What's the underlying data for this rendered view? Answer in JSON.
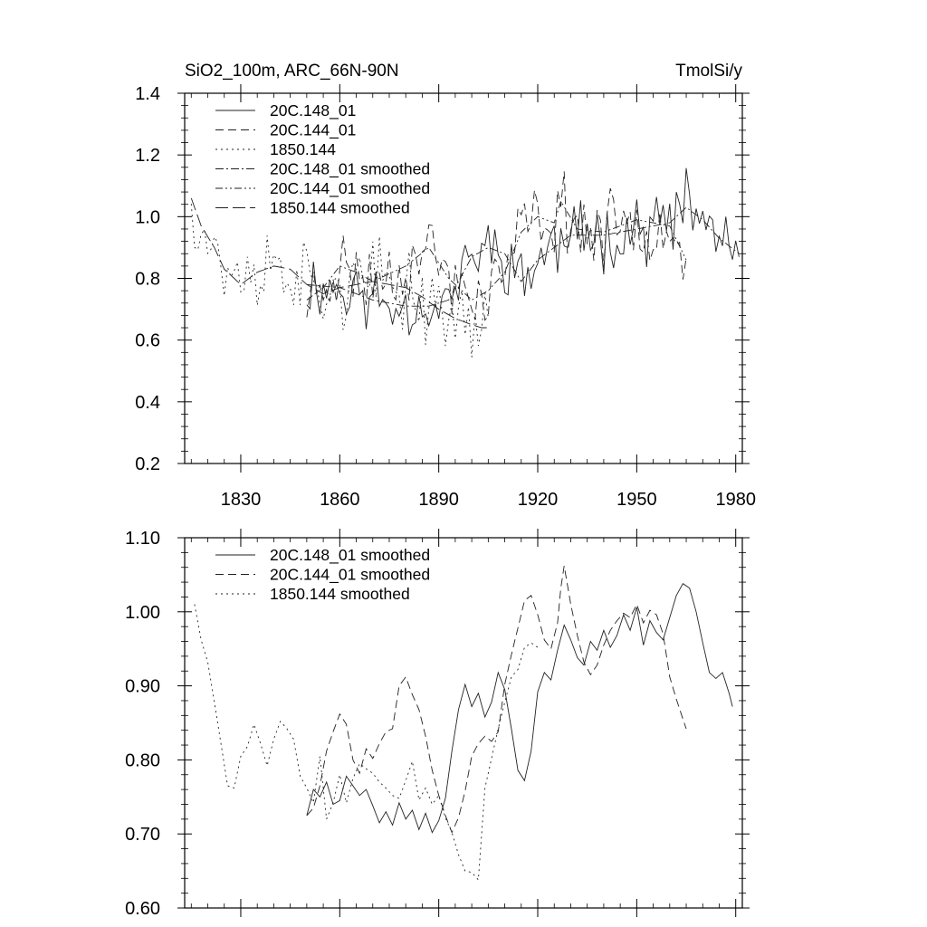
{
  "header": {
    "title_left": "SiO2_100m, ARC_66N-90N",
    "title_right": "TmolSi/y"
  },
  "chart_data": [
    {
      "type": "line",
      "title": "SiO2_100m, ARC_66N-90N",
      "units": "TmolSi/y",
      "xlim": [
        1813,
        1982
      ],
      "ylim": [
        0.2,
        1.4
      ],
      "xticks": [
        1830,
        1860,
        1890,
        1920,
        1950,
        1980
      ],
      "yticks": [
        0.2,
        0.4,
        0.6,
        0.8,
        1.0,
        1.2,
        1.4
      ],
      "ytick_labels": [
        "0.2",
        "0.4",
        "0.6",
        "0.8",
        "1.0",
        "1.2",
        "1.4"
      ],
      "legend_position": "top-left",
      "series": [
        {
          "name": "20C.148_01",
          "style": "solid",
          "start": 1850,
          "amp": 0.085,
          "seed": 11,
          "x": [
            1850,
            1860,
            1870,
            1880,
            1887,
            1893,
            1900,
            1905,
            1910,
            1915,
            1920,
            1930,
            1940,
            1950,
            1960,
            1965,
            1970,
            1975,
            1981
          ],
          "y": [
            0.78,
            0.77,
            0.73,
            0.71,
            0.71,
            0.73,
            0.87,
            0.9,
            0.88,
            0.79,
            0.86,
            0.94,
            0.94,
            0.96,
            0.98,
            1.03,
            0.99,
            0.93,
            0.88
          ]
        },
        {
          "name": "20C.144_01",
          "style": "dash",
          "start": 1850,
          "amp": 0.09,
          "seed": 23,
          "x": [
            1850,
            1855,
            1860,
            1865,
            1870,
            1880,
            1887,
            1893,
            1900,
            1905,
            1910,
            1915,
            1920,
            1925,
            1927,
            1932,
            1940,
            1950,
            1960,
            1965
          ],
          "y": [
            0.73,
            0.77,
            0.84,
            0.82,
            0.79,
            0.84,
            0.9,
            0.8,
            0.73,
            0.76,
            0.82,
            0.95,
            1.0,
            0.98,
            1.05,
            0.96,
            0.95,
            0.99,
            0.97,
            0.86
          ]
        },
        {
          "name": "1850.144",
          "style": "dot",
          "start": 1815,
          "end": 1905,
          "amp": 0.1,
          "seed": 37,
          "x": [
            1815,
            1818,
            1822,
            1825,
            1830,
            1835,
            1840,
            1845,
            1850,
            1855,
            1860,
            1870,
            1875,
            1880,
            1885,
            1890,
            1895,
            1900,
            1903
          ],
          "y": [
            1.06,
            0.97,
            0.9,
            0.83,
            0.78,
            0.82,
            0.84,
            0.83,
            0.78,
            0.75,
            0.77,
            0.79,
            0.78,
            0.77,
            0.74,
            0.7,
            0.67,
            0.65,
            0.64
          ]
        },
        {
          "name": "20C.148_01 smoothed",
          "style": "dashdot",
          "ref": 3
        },
        {
          "name": "20C.144_01 smoothed",
          "style": "dashdotdot",
          "ref": 4
        },
        {
          "name": "1850.144 smoothed",
          "style": "longdash",
          "ref": 5
        }
      ]
    },
    {
      "type": "line",
      "xlim": [
        1813,
        1982
      ],
      "ylim": [
        0.6,
        1.1
      ],
      "xticks": [
        1830,
        1860,
        1890,
        1920,
        1950,
        1980
      ],
      "yticks": [
        0.6,
        0.7,
        0.8,
        0.9,
        1.0,
        1.1
      ],
      "ytick_labels": [
        "0.60",
        "0.70",
        "0.80",
        "0.90",
        "1.00",
        "1.10"
      ],
      "legend_position": "top-left",
      "series": [
        {
          "name": "20C.148_01 smoothed",
          "style": "solid",
          "x": [
            1850,
            1852,
            1854,
            1856,
            1858,
            1860,
            1862,
            1864,
            1866,
            1868,
            1870,
            1872,
            1874,
            1876,
            1878,
            1880,
            1882,
            1884,
            1886,
            1888,
            1890,
            1892,
            1894,
            1896,
            1898,
            1900,
            1902,
            1904,
            1906,
            1908,
            1910,
            1912,
            1914,
            1916,
            1918,
            1920,
            1922,
            1924,
            1926,
            1928,
            1930,
            1932,
            1934,
            1936,
            1938,
            1940,
            1942,
            1944,
            1946,
            1948,
            1950,
            1952,
            1954,
            1956,
            1958,
            1960,
            1962,
            1964,
            1966,
            1968,
            1970,
            1972,
            1974,
            1976,
            1978,
            1979
          ],
          "y": [
            0.725,
            0.76,
            0.75,
            0.77,
            0.74,
            0.745,
            0.778,
            0.765,
            0.752,
            0.76,
            0.738,
            0.715,
            0.73,
            0.712,
            0.742,
            0.72,
            0.732,
            0.706,
            0.728,
            0.702,
            0.718,
            0.748,
            0.812,
            0.868,
            0.902,
            0.872,
            0.89,
            0.858,
            0.878,
            0.918,
            0.895,
            0.842,
            0.786,
            0.772,
            0.812,
            0.892,
            0.918,
            0.908,
            0.948,
            0.982,
            0.962,
            0.938,
            0.928,
            0.96,
            0.948,
            0.975,
            0.952,
            0.968,
            0.996,
            0.975,
            1.006,
            0.955,
            0.988,
            0.972,
            0.962,
            0.992,
            1.022,
            1.038,
            1.032,
            1.0,
            0.958,
            0.918,
            0.91,
            0.918,
            0.89,
            0.872
          ]
        },
        {
          "name": "20C.144_01 smoothed",
          "style": "dash",
          "x": [
            1850,
            1852,
            1854,
            1856,
            1858,
            1860,
            1862,
            1864,
            1866,
            1868,
            1870,
            1872,
            1874,
            1876,
            1878,
            1880,
            1882,
            1884,
            1886,
            1888,
            1890,
            1892,
            1894,
            1896,
            1898,
            1900,
            1902,
            1904,
            1906,
            1908,
            1910,
            1912,
            1914,
            1916,
            1918,
            1920,
            1922,
            1924,
            1926,
            1927,
            1928,
            1930,
            1932,
            1934,
            1936,
            1938,
            1940,
            1942,
            1944,
            1946,
            1948,
            1950,
            1952,
            1954,
            1956,
            1958,
            1960,
            1962,
            1964,
            1965
          ],
          "y": [
            0.725,
            0.735,
            0.765,
            0.812,
            0.838,
            0.862,
            0.848,
            0.8,
            0.782,
            0.815,
            0.802,
            0.822,
            0.838,
            0.842,
            0.9,
            0.912,
            0.888,
            0.868,
            0.832,
            0.786,
            0.752,
            0.725,
            0.702,
            0.722,
            0.758,
            0.805,
            0.822,
            0.832,
            0.825,
            0.838,
            0.902,
            0.942,
            0.978,
            1.015,
            1.022,
            0.996,
            0.962,
            0.95,
            0.985,
            1.032,
            1.062,
            1.01,
            0.968,
            0.932,
            0.915,
            0.928,
            0.955,
            0.975,
            0.988,
            0.998,
            0.992,
            1.01,
            0.985,
            1.002,
            0.996,
            0.97,
            0.912,
            0.882,
            0.855,
            0.842
          ]
        },
        {
          "name": "1850.144 smoothed",
          "style": "dot",
          "x": [
            1816,
            1818,
            1820,
            1822,
            1824,
            1826,
            1828,
            1830,
            1832,
            1834,
            1836,
            1838,
            1840,
            1842,
            1844,
            1846,
            1848,
            1850,
            1852,
            1854,
            1856,
            1858,
            1860,
            1862,
            1864,
            1866,
            1868,
            1870,
            1872,
            1874,
            1876,
            1878,
            1880,
            1882,
            1884,
            1886,
            1888,
            1890,
            1892,
            1894,
            1896,
            1898,
            1900,
            1902,
            1904,
            1906,
            1908,
            1910,
            1912,
            1914,
            1916,
            1918,
            1920
          ],
          "y": [
            1.01,
            0.962,
            0.932,
            0.878,
            0.822,
            0.765,
            0.762,
            0.805,
            0.818,
            0.848,
            0.822,
            0.792,
            0.828,
            0.852,
            0.842,
            0.828,
            0.778,
            0.762,
            0.742,
            0.805,
            0.72,
            0.742,
            0.78,
            0.742,
            0.775,
            0.795,
            0.788,
            0.782,
            0.77,
            0.762,
            0.752,
            0.748,
            0.772,
            0.798,
            0.746,
            0.762,
            0.74,
            0.752,
            0.722,
            0.702,
            0.672,
            0.65,
            0.648,
            0.638,
            0.762,
            0.802,
            0.842,
            0.878,
            0.912,
            0.922,
            0.952,
            0.958,
            0.952
          ]
        }
      ]
    }
  ]
}
